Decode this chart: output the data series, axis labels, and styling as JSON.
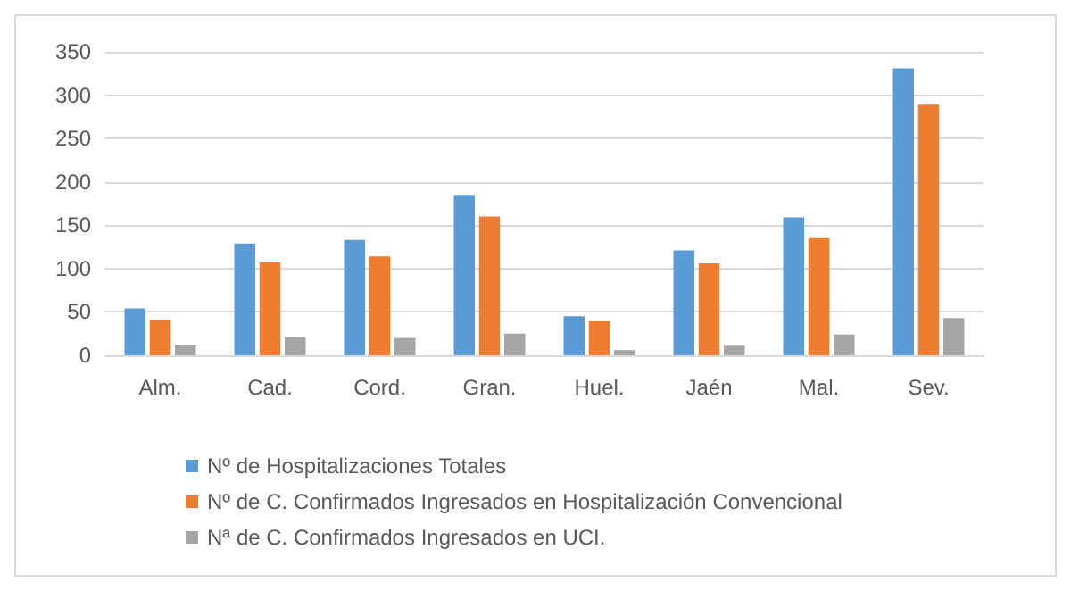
{
  "chart_data": {
    "type": "bar",
    "categories": [
      "Alm.",
      "Cad.",
      "Cord.",
      "Gran.",
      "Huel.",
      "Jaén",
      "Mal.",
      "Sev."
    ],
    "series": [
      {
        "name": "Nº de Hospitalizaciones Totales",
        "color": "#5b9bd5",
        "values": [
          54,
          129,
          133,
          185,
          45,
          121,
          159,
          331
        ]
      },
      {
        "name": "Nº de C. Confirmados Ingresados en Hospitalización Convencional",
        "color": "#ed7d31",
        "values": [
          41,
          107,
          114,
          160,
          39,
          106,
          135,
          289
        ]
      },
      {
        "name": "Nª de C. Confirmados Ingresados en UCI.",
        "color": "#a5a5a5",
        "values": [
          12,
          21,
          20,
          25,
          6,
          11,
          24,
          43
        ]
      }
    ],
    "ylim": [
      0,
      350
    ],
    "yticks": [
      0,
      50,
      100,
      150,
      200,
      250,
      300,
      350
    ],
    "grid": "y",
    "legend": "bottom"
  }
}
